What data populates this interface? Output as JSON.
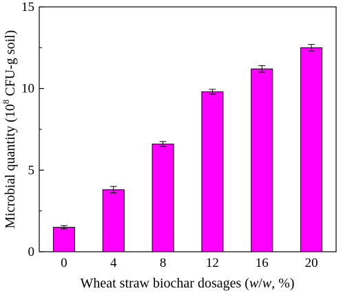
{
  "chart_data": {
    "type": "bar",
    "categories": [
      "0",
      "4",
      "8",
      "12",
      "16",
      "20"
    ],
    "values": [
      1.5,
      3.8,
      6.6,
      9.8,
      11.2,
      12.5
    ],
    "errors": [
      0.1,
      0.2,
      0.15,
      0.15,
      0.2,
      0.2
    ],
    "xlabel_parts": [
      "Wheat straw biochar dosages (",
      "w",
      "/",
      "w",
      ", %)"
    ],
    "ylabel_parts": [
      "Microbial quantity (10",
      "8",
      " CFU-g soil)"
    ],
    "ylim": [
      0,
      15
    ],
    "yticks": [
      0,
      5,
      10,
      15
    ],
    "bar_color": "#ff00ff",
    "grid": false,
    "legend": "none"
  }
}
